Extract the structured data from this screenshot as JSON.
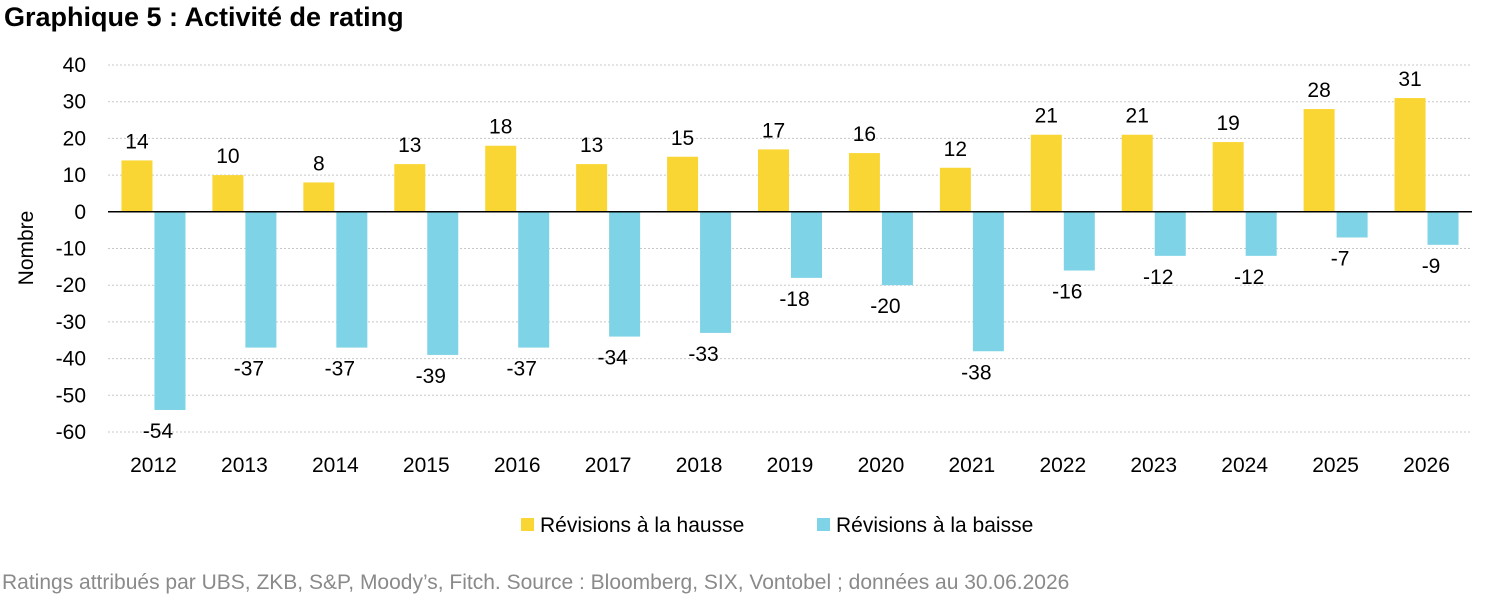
{
  "title": "Graphique 5 : Activité de rating",
  "source": "Ratings attribués par UBS, ZKB, S&P, Moody’s, Fitch. Source : Bloomberg, SIX, Vontobel ; données au 30.06.2026",
  "chart_data": {
    "type": "bar",
    "title": "Graphique 5 : Activité de rating",
    "xlabel": "",
    "ylabel": "Nombre",
    "ylim": [
      -60,
      40
    ],
    "yticks": [
      40,
      30,
      20,
      10,
      0,
      -10,
      -20,
      -30,
      -40,
      -50,
      -60
    ],
    "grid": true,
    "legend": "bottom",
    "categories": [
      "2012",
      "2013",
      "2014",
      "2015",
      "2016",
      "2017",
      "2018",
      "2019",
      "2020",
      "2021",
      "2022",
      "2023",
      "2024",
      "2025",
      "2026"
    ],
    "series": [
      {
        "name": "Révisions à la hausse",
        "color": "#FAD635",
        "values": [
          14,
          10,
          8,
          13,
          18,
          13,
          15,
          17,
          16,
          12,
          21,
          21,
          19,
          28,
          31
        ]
      },
      {
        "name": "Révisions à la baisse",
        "color": "#7ED3E6",
        "values": [
          -54,
          -37,
          -37,
          -39,
          -37,
          -34,
          -33,
          -18,
          -20,
          -38,
          -16,
          -12,
          -12,
          -7,
          -9
        ]
      }
    ]
  }
}
